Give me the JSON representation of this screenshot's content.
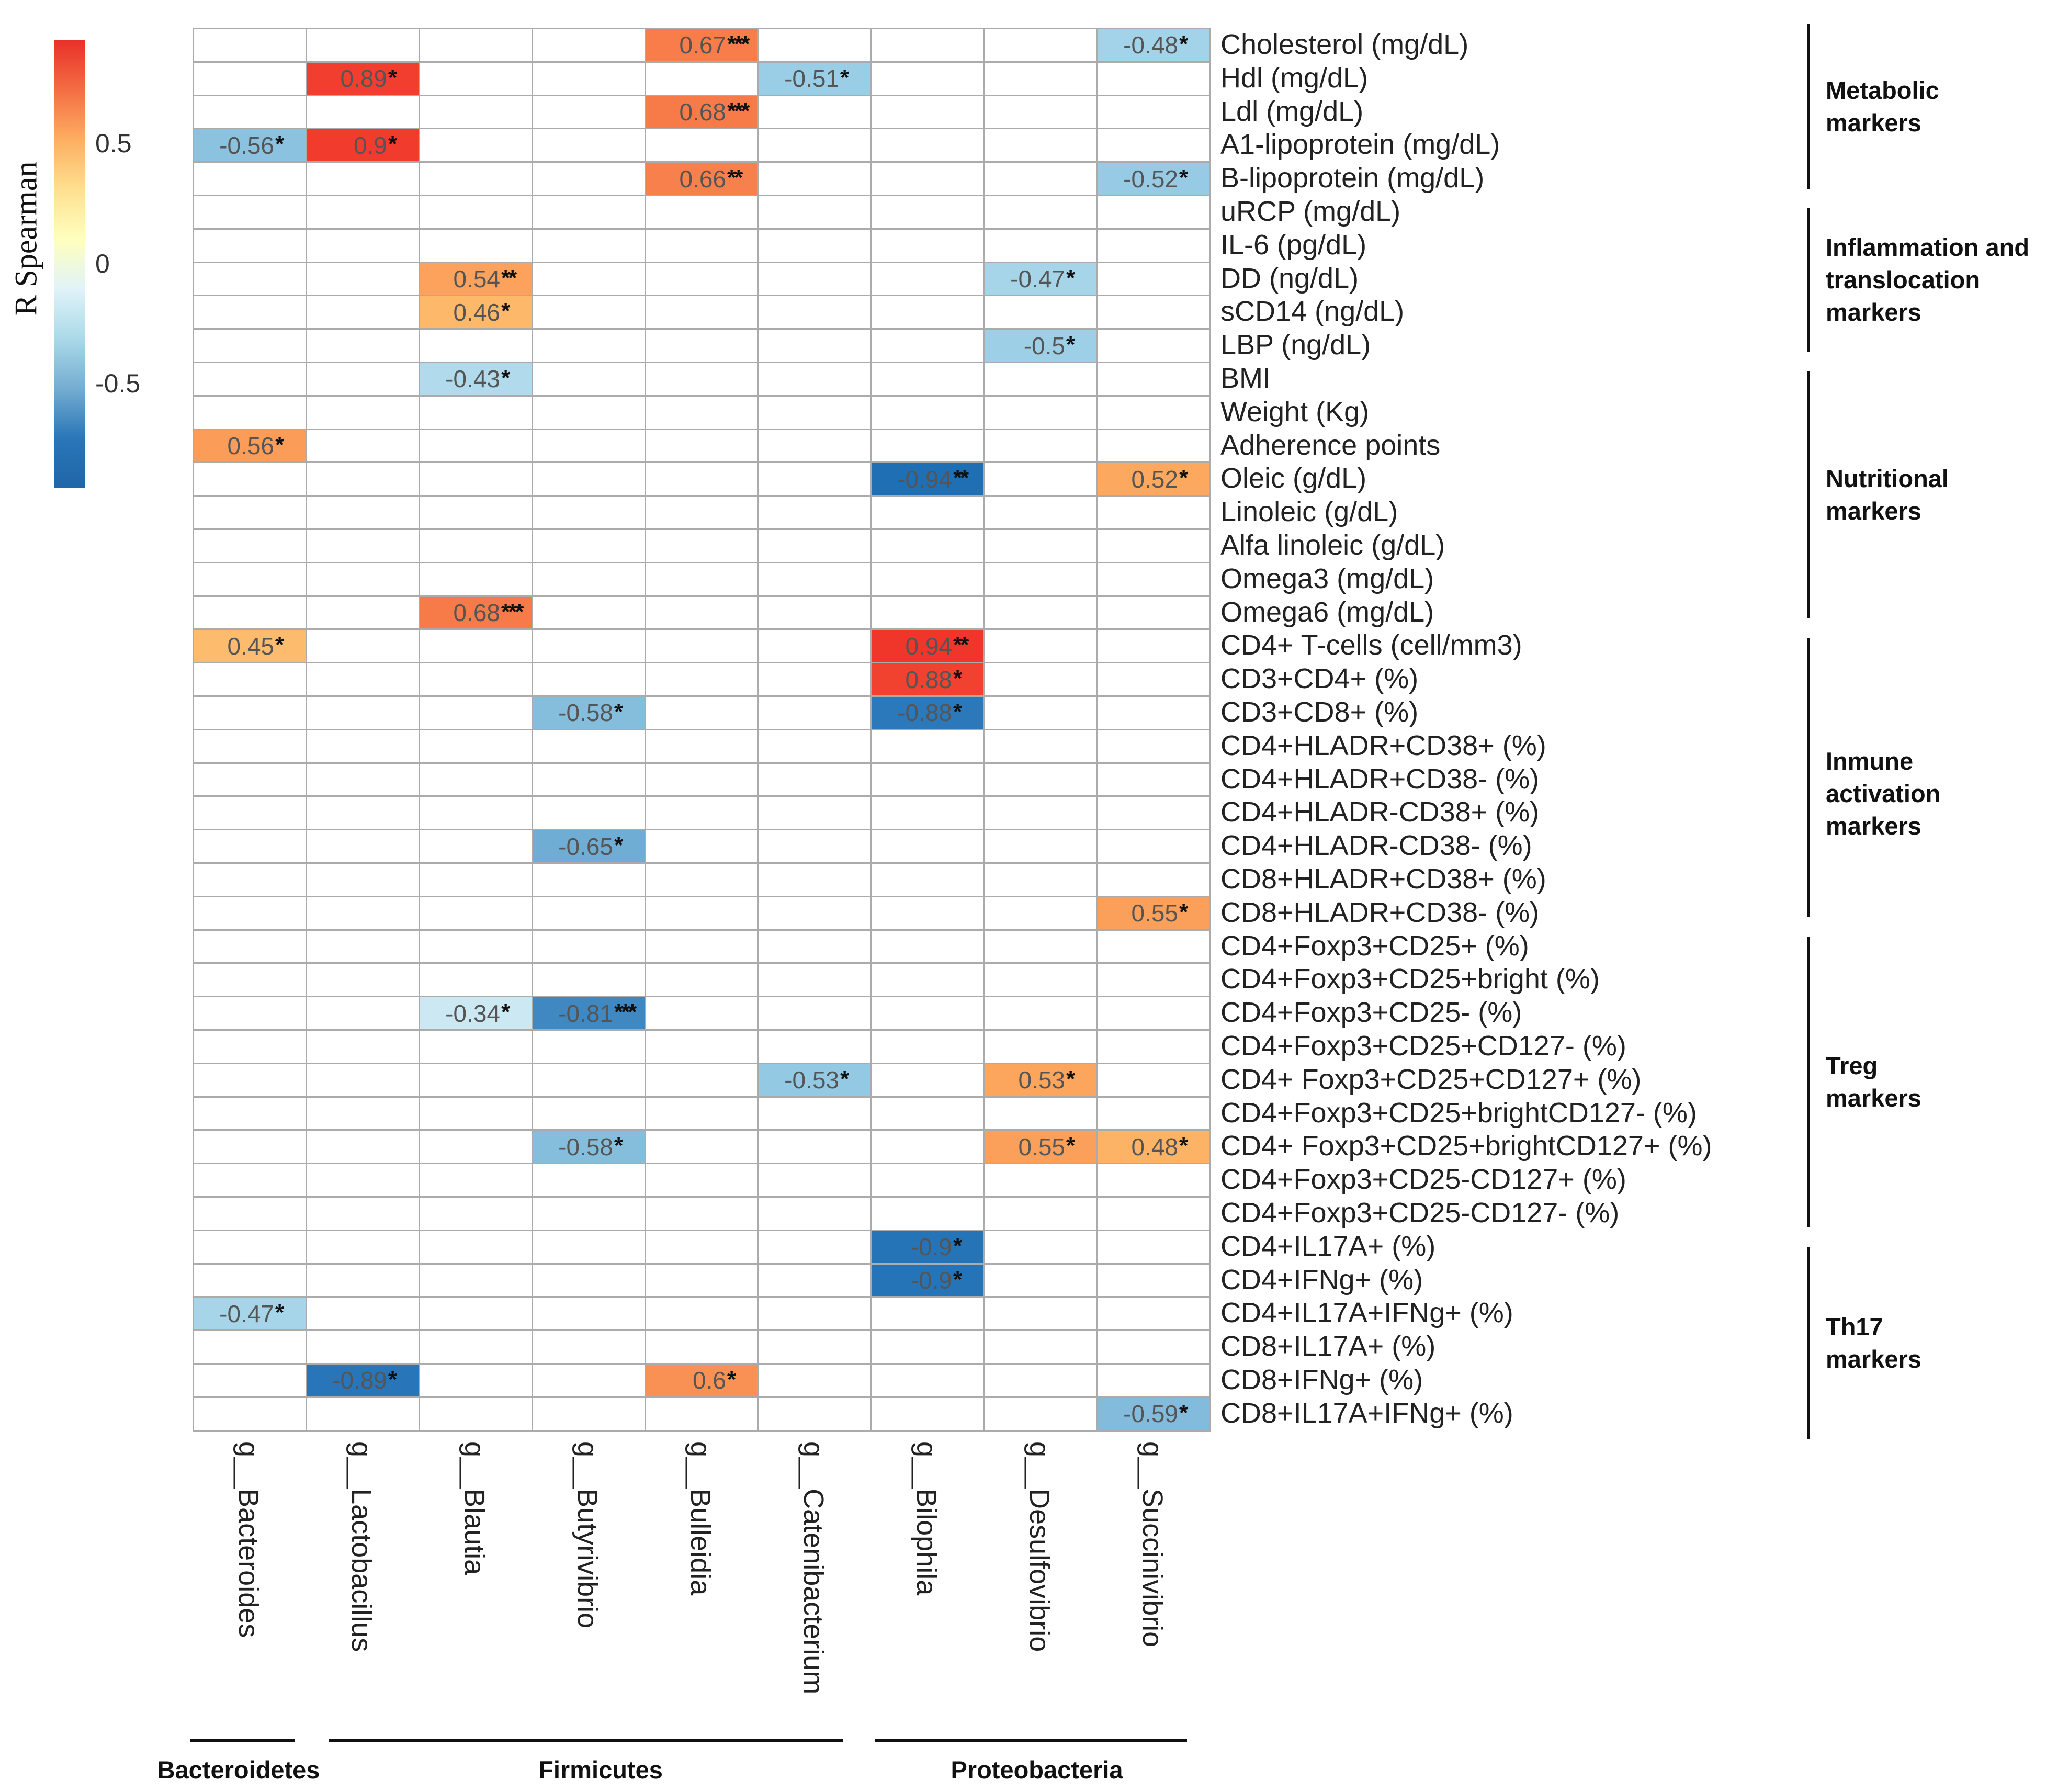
{
  "chart_data": {
    "type": "heatmap",
    "legend": {
      "title": "R Spearman",
      "ticks": [
        "0.5",
        "0",
        "-0.5"
      ],
      "tick_values": [
        0.5,
        0,
        -0.5
      ],
      "range": [
        -0.95,
        0.95
      ],
      "placement": "top-left"
    },
    "columns": [
      "g__Bacteroides",
      "g__Lactobacillus",
      "g__Blautia",
      "g__Butyrivibrio",
      "g__Bulleidia",
      "g__Catenibacterium",
      "g__Bilophila",
      "g__Desulfovibrio",
      "g__Succinivibrio"
    ],
    "phyla": [
      {
        "name": "Bacteroidetes",
        "columns": [
          0,
          0
        ]
      },
      {
        "name": "Firmicutes",
        "columns": [
          1,
          5
        ]
      },
      {
        "name": "Proteobacteria",
        "columns": [
          6,
          8
        ]
      }
    ],
    "rows": [
      "Cholesterol (mg/dL)",
      "Hdl (mg/dL)",
      "Ldl (mg/dL)",
      "A1-lipoprotein (mg/dL)",
      "B-lipoprotein (mg/dL)",
      "uRCP (mg/dL)",
      "IL-6 (pg/dL)",
      "DD (ng/dL)",
      "sCD14 (ng/dL)",
      "LBP (ng/dL)",
      "BMI",
      "Weight (Kg)",
      "Adherence points",
      "Oleic (g/dL)",
      "Linoleic (g/dL)",
      "Alfa linoleic (g/dL)",
      "Omega3 (mg/dL)",
      "Omega6 (mg/dL)",
      "CD4+ T-cells (cell/mm3)",
      "CD3+CD4+ (%)",
      "CD3+CD8+ (%)",
      "CD4+HLADR+CD38+ (%)",
      "CD4+HLADR+CD38- (%)",
      "CD4+HLADR-CD38+ (%)",
      "CD4+HLADR-CD38- (%)",
      "CD8+HLADR+CD38+ (%)",
      "CD8+HLADR+CD38- (%)",
      "CD4+Foxp3+CD25+ (%)",
      "CD4+Foxp3+CD25+bright (%)",
      "CD4+Foxp3+CD25- (%)",
      "CD4+Foxp3+CD25+CD127- (%)",
      "CD4+ Foxp3+CD25+CD127+ (%)",
      "CD4+Foxp3+CD25+brightCD127- (%)",
      "CD4+ Foxp3+CD25+brightCD127+ (%)",
      "CD4+Foxp3+CD25-CD127+ (%)",
      "CD4+Foxp3+CD25-CD127- (%)",
      "CD4+IL17A+ (%)",
      "CD4+IFNg+ (%)",
      "CD4+IL17A+IFNg+ (%)",
      "CD8+IL17A+ (%)",
      "CD8+IFNg+ (%)",
      "CD8+IL17A+IFNg+ (%)"
    ],
    "groups": [
      {
        "name": "Metabolic markers",
        "rows": [
          0,
          4
        ]
      },
      {
        "name": "Inflammation and translocation markers",
        "rows": [
          5,
          9
        ]
      },
      {
        "name": "Nutritional markers",
        "rows": [
          10,
          17
        ]
      },
      {
        "name": "Inmune activation markers",
        "rows": [
          18,
          26
        ]
      },
      {
        "name": "Treg markers",
        "rows": [
          27,
          35
        ]
      },
      {
        "name": "Th17 markers",
        "rows": [
          36,
          41
        ]
      }
    ],
    "cells": [
      {
        "row": 0,
        "col": 4,
        "r": "0.67",
        "sig": "***"
      },
      {
        "row": 0,
        "col": 8,
        "r": "-0.48",
        "sig": "*"
      },
      {
        "row": 1,
        "col": 1,
        "r": "0.89",
        "sig": "*"
      },
      {
        "row": 1,
        "col": 5,
        "r": "-0.51",
        "sig": "*"
      },
      {
        "row": 2,
        "col": 4,
        "r": "0.68",
        "sig": "***"
      },
      {
        "row": 3,
        "col": 0,
        "r": "-0.56",
        "sig": "*"
      },
      {
        "row": 3,
        "col": 1,
        "r": "0.9",
        "sig": "*"
      },
      {
        "row": 4,
        "col": 4,
        "r": "0.66",
        "sig": "**"
      },
      {
        "row": 4,
        "col": 8,
        "r": "-0.52",
        "sig": "*"
      },
      {
        "row": 7,
        "col": 2,
        "r": "0.54",
        "sig": "**"
      },
      {
        "row": 7,
        "col": 7,
        "r": "-0.47",
        "sig": "*"
      },
      {
        "row": 8,
        "col": 2,
        "r": "0.46",
        "sig": "*"
      },
      {
        "row": 9,
        "col": 7,
        "r": "-0.5",
        "sig": "*"
      },
      {
        "row": 10,
        "col": 2,
        "r": "-0.43",
        "sig": "*"
      },
      {
        "row": 12,
        "col": 0,
        "r": "0.56",
        "sig": "*"
      },
      {
        "row": 13,
        "col": 6,
        "r": "-0.94",
        "sig": "**"
      },
      {
        "row": 13,
        "col": 8,
        "r": "0.52",
        "sig": "*"
      },
      {
        "row": 17,
        "col": 2,
        "r": "0.68",
        "sig": "***"
      },
      {
        "row": 18,
        "col": 0,
        "r": "0.45",
        "sig": "*"
      },
      {
        "row": 18,
        "col": 6,
        "r": "0.94",
        "sig": "**"
      },
      {
        "row": 19,
        "col": 6,
        "r": "0.88",
        "sig": "*"
      },
      {
        "row": 20,
        "col": 3,
        "r": "-0.58",
        "sig": "*"
      },
      {
        "row": 20,
        "col": 6,
        "r": "-0.88",
        "sig": "*"
      },
      {
        "row": 24,
        "col": 3,
        "r": "-0.65",
        "sig": "*"
      },
      {
        "row": 26,
        "col": 8,
        "r": "0.55",
        "sig": "*"
      },
      {
        "row": 29,
        "col": 2,
        "r": "-0.34",
        "sig": "*"
      },
      {
        "row": 29,
        "col": 3,
        "r": "-0.81",
        "sig": "***"
      },
      {
        "row": 31,
        "col": 5,
        "r": "-0.53",
        "sig": "*"
      },
      {
        "row": 31,
        "col": 7,
        "r": "0.53",
        "sig": "*"
      },
      {
        "row": 33,
        "col": 3,
        "r": "-0.58",
        "sig": "*"
      },
      {
        "row": 33,
        "col": 7,
        "r": "0.55",
        "sig": "*"
      },
      {
        "row": 33,
        "col": 8,
        "r": "0.48",
        "sig": "*"
      },
      {
        "row": 36,
        "col": 6,
        "r": "-0.9",
        "sig": "*"
      },
      {
        "row": 37,
        "col": 6,
        "r": "-0.9",
        "sig": "*"
      },
      {
        "row": 38,
        "col": 0,
        "r": "-0.47",
        "sig": "*"
      },
      {
        "row": 40,
        "col": 1,
        "r": "-0.89",
        "sig": "*"
      },
      {
        "row": 40,
        "col": 4,
        "r": "0.6",
        "sig": "*"
      },
      {
        "row": 41,
        "col": 8,
        "r": "-0.59",
        "sig": "*"
      }
    ],
    "colors": {
      "pos_low": "#fee090",
      "pos_mid": "#fdae61",
      "pos_high": "#f0352a",
      "neg_low": "#d6eef6",
      "neg_mid": "#9dd0e7",
      "neg_high": "#1f6fb5",
      "grid": "#ababab"
    }
  }
}
